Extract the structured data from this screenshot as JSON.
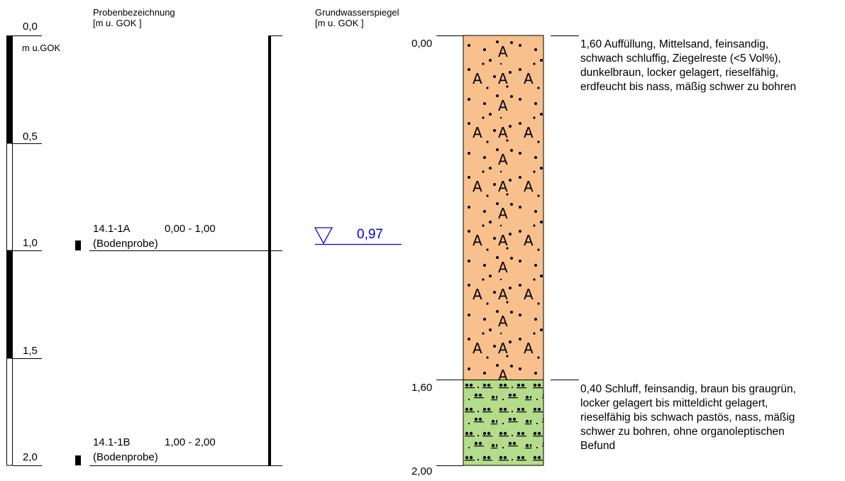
{
  "header": {
    "probe_title": "Probenbezeichnung",
    "probe_unit": "[m u. GOK ]",
    "gw_title": "Grundwasserspiegel",
    "gw_unit": "[m u. GOK ]"
  },
  "scale": {
    "unit_label": "m u.GOK",
    "ticks": [
      "0,0",
      "0,5",
      "1,0",
      "1,5",
      "2,0"
    ]
  },
  "samples": [
    {
      "id": "14.1-1A",
      "range": "0,00 - 1,00",
      "type": "(Bodenprobe)",
      "depth_m": 1.0
    },
    {
      "id": "14.1-1B",
      "range": "1,00 - 2,00",
      "type": "(Bodenprobe)",
      "depth_m": 2.0
    }
  ],
  "groundwater": {
    "value": "0,97",
    "depth_m": 0.97
  },
  "column": {
    "depth_labels": [
      "0,00",
      "1,60",
      "2,00"
    ]
  },
  "layers": [
    {
      "top_m": 0.0,
      "bottom_m": 1.6,
      "color": "#f8c08c",
      "pattern": "fill-sand-A",
      "lines": [
        "1,60 Auffüllung, Mittelsand, feinsandig,",
        "schwach schluffig, Ziegelreste (<5 Vol%),",
        "dunkelbraun, locker gelagert, rieselfähig,",
        "erdfeucht bis nass, mäßig schwer zu bohren"
      ]
    },
    {
      "top_m": 1.6,
      "bottom_m": 2.0,
      "color": "#b4dc8c",
      "pattern": "silt",
      "lines": [
        "0,40 Schluff, feinsandig, braun bis graugrün,",
        "locker gelagert bis mitteldicht gelagert,",
        "rieselfähig bis schwach pastös, nass, mäßig",
        "schwer zu bohren, ohne organoleptischen",
        "Befund"
      ]
    }
  ],
  "colors": {
    "groundwater": "#0000e0",
    "line": "#000000"
  }
}
